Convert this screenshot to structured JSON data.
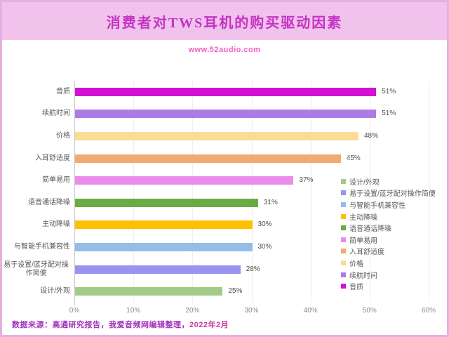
{
  "header": {
    "title": "消费者对TWS耳机的购买驱动因素",
    "subtitle": "www.52audio.com"
  },
  "footer": {
    "source_text": "数据来源：高通研究报告，我爱音频网编辑整理，",
    "date_text": "2022年2月"
  },
  "chart_data": {
    "type": "bar",
    "orientation": "horizontal",
    "title": "消费者对TWS耳机的购买驱动因素",
    "xlabel": "",
    "ylabel": "",
    "xlim": [
      0,
      60
    ],
    "grid": "faint-vertical",
    "legend_position": "right",
    "categories": [
      "音质",
      "续航时间",
      "价格",
      "入耳舒适度",
      "简单易用",
      "语音通话降噪",
      "主动降噪",
      "与智能手机兼容性",
      "易于设置/蓝牙配对操作简便",
      "设计/外观"
    ],
    "values": [
      51,
      51,
      48,
      45,
      37,
      31,
      30,
      30,
      28,
      25
    ],
    "value_labels": [
      "51%",
      "51%",
      "48%",
      "45%",
      "37%",
      "31%",
      "30%",
      "30%",
      "28%",
      "25%"
    ],
    "bar_colors": [
      "#d211d2",
      "#ac7ce4",
      "#fbdc94",
      "#efab71",
      "#eb8ceb",
      "#6aab42",
      "#ffc003",
      "#92bee7",
      "#9795f0",
      "#a2cb8a"
    ],
    "x_ticks": [
      "0%",
      "10%",
      "20%",
      "30%",
      "40%",
      "50%",
      "60%"
    ],
    "legend": [
      {
        "label": "设计/外观",
        "color": "#a2cb8a"
      },
      {
        "label": "易于设置/蓝牙配对操作简便",
        "color": "#9795f0"
      },
      {
        "label": "与智能手机兼容性",
        "color": "#92bee7"
      },
      {
        "label": "主动降噪",
        "color": "#ffc003"
      },
      {
        "label": "语音通话降噪",
        "color": "#6aab42"
      },
      {
        "label": "简单易用",
        "color": "#eb8ceb"
      },
      {
        "label": "入耳舒适度",
        "color": "#efab71"
      },
      {
        "label": "价格",
        "color": "#fbdc94"
      },
      {
        "label": "续航时间",
        "color": "#ac7ce4"
      },
      {
        "label": "音质",
        "color": "#d211d2"
      }
    ]
  },
  "theme": {
    "band_color": "#f0c2ec",
    "border_color": "#e5b0e0",
    "title_color": "#c433c4",
    "subtitle_color": "#ee5fc4",
    "footer_color": "#a133be",
    "footer_date_color": "#c8399b",
    "axis_text_color": "#8a8a8a",
    "label_text_color": "#595959"
  }
}
